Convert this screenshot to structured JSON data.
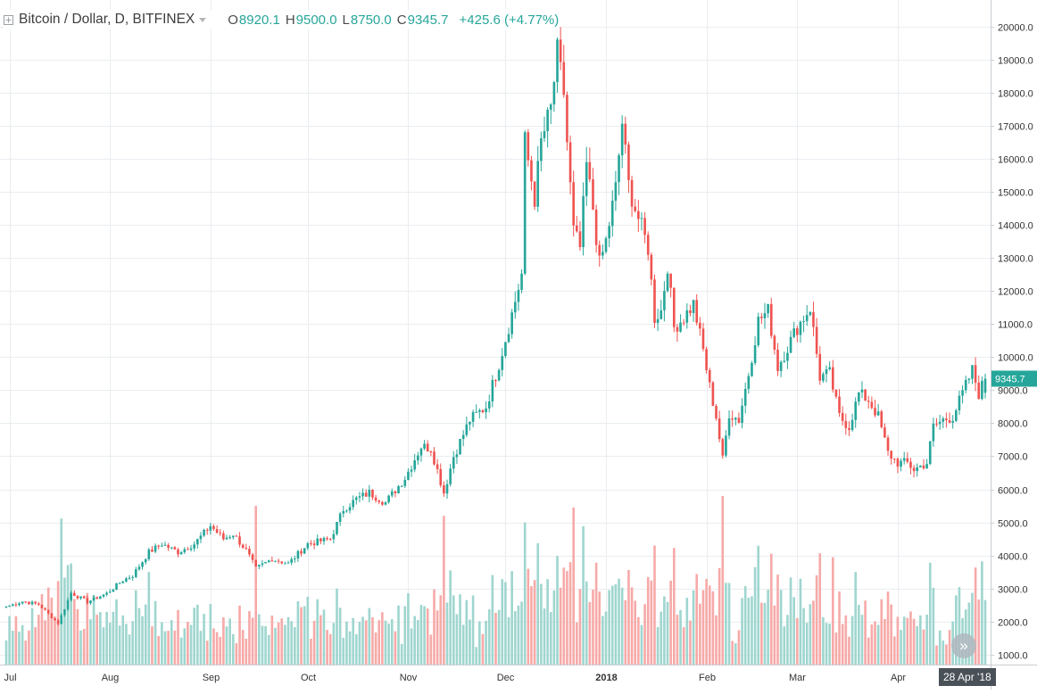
{
  "header": {
    "title": "Bitcoin / Dollar, D, BITFINEX",
    "o_label": "O",
    "o_value": "8920.1",
    "h_label": "H",
    "h_value": "9500.0",
    "l_label": "L",
    "l_value": "8750.0",
    "c_label": "C",
    "c_value": "9345.7",
    "change": "+425.6 (+4.77%)",
    "icons": [
      "expand-square-icon",
      "dropdown-caret-icon"
    ]
  },
  "current_price_label": "9345.7",
  "crosshair_date": "28 Apr '18",
  "scroll_button_icon": "double-chevron-right-icon",
  "colors": {
    "up": "#26a69a",
    "down": "#ef5350",
    "volume_up": "#9fd6cf",
    "volume_down": "#f6aaa8",
    "grid": "#eaedf0",
    "axis_text": "#333333",
    "price_tag": "#26a69a",
    "date_tag": "#4a5058"
  },
  "chart_data": {
    "type": "candlestick",
    "symbol": "Bitcoin / Dollar",
    "interval": "D",
    "exchange": "BITFINEX",
    "x_tick_labels": [
      "Jul",
      "Aug",
      "Sep",
      "Oct",
      "Nov",
      "Dec",
      "2018",
      "Feb",
      "Mar",
      "Apr"
    ],
    "y_tick_labels": [
      "1000.0",
      "2000.0",
      "3000.0",
      "4000.0",
      "5000.0",
      "6000.0",
      "7000.0",
      "8000.0",
      "9000.0",
      "10000.0",
      "11000.0",
      "12000.0",
      "13000.0",
      "14000.0",
      "15000.0",
      "16000.0",
      "17000.0",
      "18000.0",
      "19000.0",
      "20000.0"
    ],
    "ylim": [
      700,
      20800
    ],
    "date_range": [
      "2017-06-30",
      "2018-04-28"
    ],
    "grid": true,
    "volume_overlay": true,
    "close_path": [
      [
        "2017-06-30",
        2450
      ],
      [
        "2017-07-05",
        2610
      ],
      [
        "2017-07-10",
        2520
      ],
      [
        "2017-07-16",
        1950
      ],
      [
        "2017-07-20",
        2870
      ],
      [
        "2017-07-25",
        2600
      ],
      [
        "2017-07-31",
        2850
      ],
      [
        "2017-08-05",
        3250
      ],
      [
        "2017-08-08",
        3400
      ],
      [
        "2017-08-13",
        4100
      ],
      [
        "2017-08-17",
        4350
      ],
      [
        "2017-08-22",
        4100
      ],
      [
        "2017-08-27",
        4350
      ],
      [
        "2017-09-01",
        4900
      ],
      [
        "2017-09-05",
        4500
      ],
      [
        "2017-09-08",
        4650
      ],
      [
        "2017-09-12",
        4150
      ],
      [
        "2017-09-15",
        3600
      ],
      [
        "2017-09-20",
        3900
      ],
      [
        "2017-09-25",
        3750
      ],
      [
        "2017-10-01",
        4350
      ],
      [
        "2017-10-08",
        4500
      ],
      [
        "2017-10-12",
        5400
      ],
      [
        "2017-10-16",
        5700
      ],
      [
        "2017-10-20",
        5900
      ],
      [
        "2017-10-25",
        5600
      ],
      [
        "2017-10-31",
        6350
      ],
      [
        "2017-11-05",
        7300
      ],
      [
        "2017-11-08",
        7250
      ],
      [
        "2017-11-12",
        5900
      ],
      [
        "2017-11-15",
        7000
      ],
      [
        "2017-11-20",
        8100
      ],
      [
        "2017-11-25",
        8500
      ],
      [
        "2017-11-29",
        9800
      ],
      [
        "2017-12-03",
        11300
      ],
      [
        "2017-12-06",
        12500
      ],
      [
        "2017-12-07",
        16500
      ],
      [
        "2017-12-10",
        14800
      ],
      [
        "2017-12-12",
        16500
      ],
      [
        "2017-12-15",
        17500
      ],
      [
        "2017-12-17",
        19200
      ],
      [
        "2017-12-19",
        18000
      ],
      [
        "2017-12-20",
        16500
      ],
      [
        "2017-12-22",
        13800
      ],
      [
        "2017-12-24",
        13300
      ],
      [
        "2017-12-26",
        15800
      ],
      [
        "2017-12-28",
        14500
      ],
      [
        "2017-12-30",
        12800
      ],
      [
        "2018-01-01",
        13500
      ],
      [
        "2018-01-04",
        15100
      ],
      [
        "2018-01-06",
        17100
      ],
      [
        "2018-01-08",
        15200
      ],
      [
        "2018-01-10",
        14500
      ],
      [
        "2018-01-12",
        13900
      ],
      [
        "2018-01-14",
        13300
      ],
      [
        "2018-01-16",
        11200
      ],
      [
        "2018-01-18",
        11400
      ],
      [
        "2018-01-20",
        12800
      ],
      [
        "2018-01-22",
        10900
      ],
      [
        "2018-01-25",
        11200
      ],
      [
        "2018-01-28",
        11600
      ],
      [
        "2018-01-31",
        10200
      ],
      [
        "2018-02-02",
        9100
      ],
      [
        "2018-02-04",
        8200
      ],
      [
        "2018-02-06",
        6900
      ],
      [
        "2018-02-08",
        8300
      ],
      [
        "2018-02-11",
        8100
      ],
      [
        "2018-02-14",
        9500
      ],
      [
        "2018-02-17",
        11100
      ],
      [
        "2018-02-20",
        11400
      ],
      [
        "2018-02-23",
        9700
      ],
      [
        "2018-02-26",
        10300
      ],
      [
        "2018-03-01",
        10900
      ],
      [
        "2018-03-05",
        11500
      ],
      [
        "2018-03-08",
        9400
      ],
      [
        "2018-03-11",
        9500
      ],
      [
        "2018-03-14",
        8200
      ],
      [
        "2018-03-17",
        7900
      ],
      [
        "2018-03-20",
        8900
      ],
      [
        "2018-03-23",
        8700
      ],
      [
        "2018-03-26",
        8200
      ],
      [
        "2018-03-29",
        7100
      ],
      [
        "2018-04-01",
        6800
      ],
      [
        "2018-04-04",
        6800
      ],
      [
        "2018-04-06",
        6600
      ],
      [
        "2018-04-10",
        6800
      ],
      [
        "2018-04-12",
        7900
      ],
      [
        "2018-04-15",
        8100
      ],
      [
        "2018-04-18",
        8200
      ],
      [
        "2018-04-21",
        8900
      ],
      [
        "2018-04-24",
        9600
      ],
      [
        "2018-04-26",
        8900
      ],
      [
        "2018-04-28",
        9345.7
      ]
    ],
    "last_candle": {
      "open": 8920.1,
      "high": 9500.0,
      "low": 8750.0,
      "close": 9345.7
    },
    "volume_peaks": [
      [
        "2017-09-15",
        5500
      ],
      [
        "2017-11-12",
        5200
      ],
      [
        "2017-12-07",
        5000
      ],
      [
        "2017-12-22",
        5450
      ],
      [
        "2018-02-06",
        5800
      ],
      [
        "2018-01-16",
        4300
      ]
    ]
  }
}
